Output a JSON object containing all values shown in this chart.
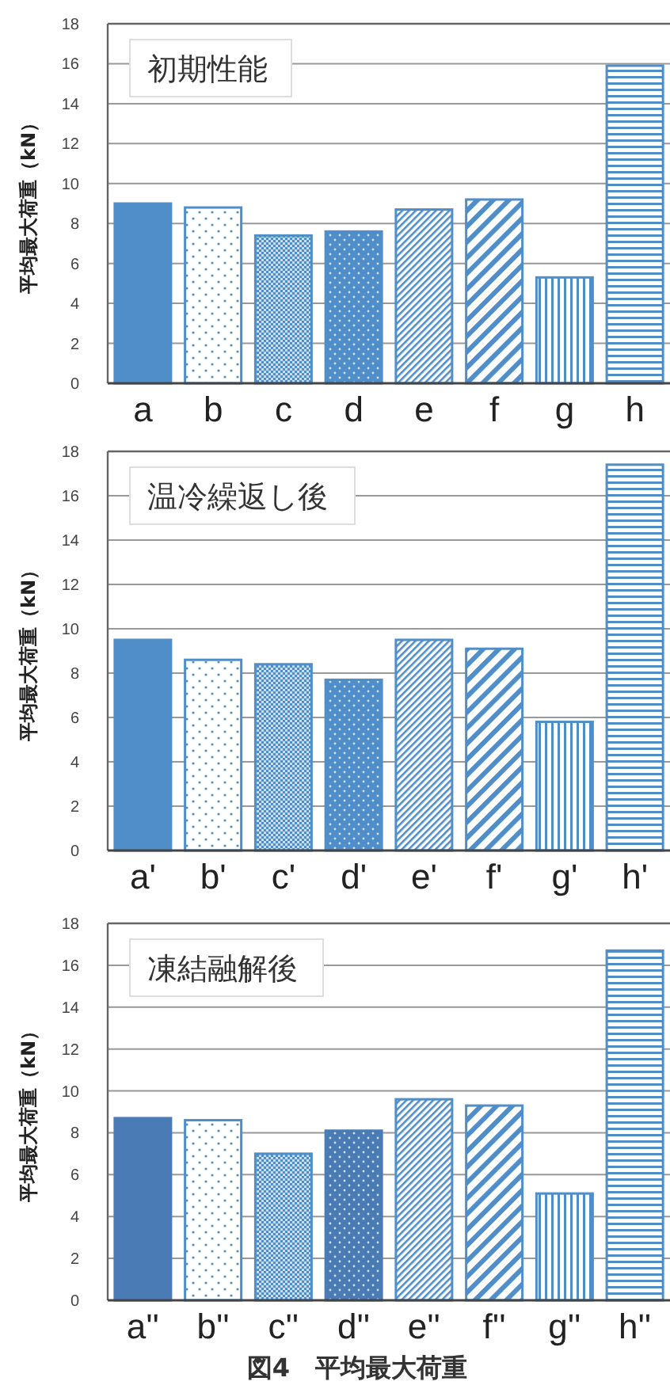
{
  "chart_data": [
    {
      "type": "bar",
      "title": "初期性能",
      "ylabel": "平均最大荷重（kN）",
      "categories": [
        "a",
        "b",
        "c",
        "d",
        "e",
        "f",
        "g",
        "h"
      ],
      "values": [
        9.0,
        8.8,
        7.4,
        7.6,
        8.7,
        9.2,
        5.3,
        15.9
      ],
      "colors": [
        "#4f8ec8",
        "#4f8ec8",
        "#4f8ec8",
        "#4f8ec8",
        "#4f8ec8",
        "#4f8ec8",
        "#4f8ec8",
        "#4f8ec8"
      ],
      "ylim": [
        0,
        18
      ],
      "yticks": [
        0,
        2,
        4,
        6,
        8,
        10,
        12,
        14,
        16,
        18
      ],
      "grid": "y"
    },
    {
      "type": "bar",
      "title": "温冷繰返し後",
      "ylabel": "平均最大荷重（kN）",
      "categories": [
        "a'",
        "b'",
        "c'",
        "d'",
        "e'",
        "f'",
        "g'",
        "h'"
      ],
      "values": [
        9.5,
        8.6,
        8.4,
        7.7,
        9.5,
        9.1,
        5.8,
        17.4
      ],
      "colors": [
        "#4f8ec8",
        "#4f8ec8",
        "#4f8ec8",
        "#4f8ec8",
        "#4f8ec8",
        "#4f8ec8",
        "#4f8ec8",
        "#4f8ec8"
      ],
      "ylim": [
        0,
        18
      ],
      "yticks": [
        0,
        2,
        4,
        6,
        8,
        10,
        12,
        14,
        16,
        18
      ],
      "grid": "y"
    },
    {
      "type": "bar",
      "title": "凍結融解後",
      "ylabel": "平均最大荷重（kN）",
      "categories": [
        "a''",
        "b''",
        "c''",
        "d''",
        "e''",
        "f''",
        "g''",
        "h''"
      ],
      "values": [
        8.7,
        8.6,
        7.0,
        8.1,
        9.6,
        9.3,
        5.1,
        16.7
      ],
      "colors": [
        "#4a7bb5",
        "#4f8ec8",
        "#4f8ec8",
        "#4a7bb5",
        "#4f8ec8",
        "#4f8ec8",
        "#4f8ec8",
        "#4f8ec8"
      ],
      "ylim": [
        0,
        18
      ],
      "yticks": [
        0,
        2,
        4,
        6,
        8,
        10,
        12,
        14,
        16,
        18
      ],
      "grid": "y",
      "annotations": [
        "図4　平均最大荷重"
      ]
    }
  ]
}
